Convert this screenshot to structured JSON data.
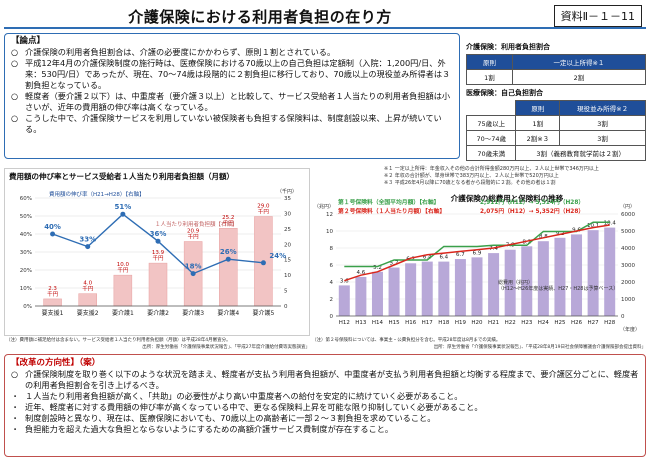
{
  "title": "介護保険における利用者負担の在り方",
  "doc_no": "資料Ⅱ－１－11",
  "ronten": {
    "heading": "【論点】",
    "items": [
      {
        "bullet": "○",
        "text": "介護保険の利用者負担割合は、介護の必要度にかかわらず、原則１割とされている。"
      },
      {
        "bullet": "○",
        "text": "平成12年4月の介護保険制度の施行時は、医療保険における70歳以上の自己負担は定額制（入院：1,200円/日、外来：530円/日）であったが、現在、70～74歳は段階的に２割負担に移行しており、70歳以上の現役並み所得者は３割負担となっている。"
      },
      {
        "bullet": "○",
        "text": "軽度者（要介護２以下）は、中重度者（要介護３以上）と比較して、サービス受給者１人当たりの利用者負担額は小さいが、近年の費用額の伸び率は高くなっている。"
      },
      {
        "bullet": "○",
        "text": "こうした中で、介護保険サービスを利用していない被保険者も負担する保険料は、制度創設以来、上昇が続いている。"
      }
    ]
  },
  "table1": {
    "title": "介護保険：利用者負担割合",
    "headers": [
      "原則",
      "一定以上所得※１"
    ],
    "row": [
      "1割",
      "2割"
    ]
  },
  "table2": {
    "title": "医療保険：自己負担割合",
    "headers": [
      "",
      "原則",
      "現役並み所得※２"
    ],
    "rows": [
      [
        "75歳以上",
        "1割",
        "3割"
      ],
      [
        "70～74歳",
        "2割※３",
        "3割"
      ],
      [
        "70歳未満",
        "3割（義務教育就学前は２割）",
        ""
      ]
    ]
  },
  "notes": [
    "※１ 一定以上所得：年金収入その他の合計所得金額280万円以上、２人以上世帯で346万円以上",
    "※２ 年収の合計額が、単身世帯で383万円以上、２人以上世帯で520万円以上",
    "※３ 平成26年4月以降に70歳となる者から段階的に２割。その他の者は１割"
  ],
  "chart_left": {
    "title": "費用額の伸び率とサービス受給者１人当たり利用者負担額（月額）",
    "legend_line": "費用額の伸び率（H21→H28）【右軸】",
    "legend_bar": "１人当たり利用者負担額【右軸】",
    "y_unit": "（千円）",
    "source": "出所：厚生労働省「介護保険事業状況報告」、「平成27年度介護給付費等実態調査」",
    "footnote": "（注）費用額に補足給付は含まない。サービス受給者１人当たり利用者負担額（月額）は平成28年4月審査分。"
  },
  "chart_data": [
    {
      "type": "bar",
      "title": "費用額の伸び率とサービス受給者１人当たり利用者負担額（月額）",
      "categories": [
        "要支援1",
        "要支援2",
        "要介護1",
        "要介護2",
        "要介護3",
        "要介護4",
        "要介護5"
      ],
      "series": [
        {
          "name": "１人当たり利用者負担額",
          "values": [
            2.3,
            4.0,
            10.0,
            13.9,
            20.9,
            25.2,
            29.0
          ],
          "labels": [
            "2.3千円",
            "4.0千円",
            "10.0千円",
            "13.9千円",
            "20.9千円",
            "25.2千円",
            "29.0千円"
          ]
        },
        {
          "name": "費用額の伸び率（H21→H28）",
          "values": [
            40,
            33,
            51,
            36,
            18,
            26,
            24
          ],
          "labels": [
            "40%",
            "33%",
            "51%",
            "36%",
            "18%",
            "26%",
            "24%"
          ]
        }
      ],
      "ylim_left": [
        0,
        60
      ],
      "ylim_right": [
        0,
        35
      ],
      "left_ticks": [
        "0%",
        "10%",
        "20%",
        "30%",
        "40%",
        "50%",
        "60%"
      ],
      "right_ticks": [
        "0",
        "5",
        "10",
        "15",
        "20",
        "25",
        "30",
        "35"
      ],
      "ylabel_right": "（千円）"
    },
    {
      "type": "line",
      "title": "介護保険の総費用と保険料の推移",
      "categories": [
        "H12",
        "H13",
        "H14",
        "H15",
        "H16",
        "H17",
        "H18",
        "H19",
        "H20",
        "H21",
        "H22",
        "H23",
        "H24",
        "H25",
        "H26",
        "H27",
        "H28"
      ],
      "bars": {
        "name": "総費用",
        "values": [
          3.6,
          4.6,
          5.2,
          5.7,
          6.2,
          6.4,
          6.4,
          6.7,
          6.9,
          7.4,
          7.8,
          8.2,
          8.8,
          9.2,
          9.6,
          10.1,
          10.4
        ]
      },
      "series": [
        {
          "name": "第１号保険料（全国平均月額）",
          "legend": "第１号保険料（全国平均月額）【右軸】",
          "range": "2,911円（H12）→ 5,514円（H28）",
          "values": [
            2911,
            2911,
            2911,
            3293,
            3293,
            3293,
            4090,
            4090,
            4090,
            4160,
            4160,
            4160,
            4972,
            4972,
            4972,
            5514,
            5514
          ]
        },
        {
          "name": "第２号保険料（１人当たり月額）",
          "legend": "第２号保険料（１人当たり月額）【右軸】",
          "range": "2,075円（H12）→ 5,352円（H28）",
          "values": [
            2075,
            2400,
            2600,
            3000,
            3400,
            3600,
            3700,
            3800,
            3900,
            4000,
            4200,
            4400,
            4600,
            4800,
            5000,
            5200,
            5352
          ]
        }
      ],
      "left_axis_label": "（兆円）",
      "right_axis_label": "（円）",
      "x_unit": "（年度）",
      "ylim_left": [
        0,
        12
      ],
      "ylim_right": [
        0,
        6000
      ],
      "left_ticks": [
        "0",
        "2",
        "4",
        "6",
        "8",
        "10",
        "12"
      ],
      "right_ticks": [
        "0",
        "1000",
        "2000",
        "3000",
        "4000",
        "5000",
        "6000"
      ],
      "annotation": "総費用（兆円）\n（H12～H26年度は実績、H27・H28は予算ベース）"
    }
  ],
  "chart_right_source": "出所：厚生労働省「介護保険事業状況報告」、「平成28年8月19日社会保障審議会介護保険部会提出資料」",
  "chart_left_note": "（注）第２号保険料については、事業主・公費負担分を含む。平成28年度は8月までの実績。",
  "kaikaku": {
    "heading": "【改革の方向性】（案）",
    "items": [
      {
        "bullet": "○",
        "text": "介護保険制度を取り巻く以下のような状況を踏まえ、軽度者が支払う利用者負担額が、中重度者が支払う利用者負担額と均衡する程度まで、要介護区分ごとに、軽度者の利用者負担割合を引き上げるべき。"
      },
      {
        "bullet": "・",
        "text": "１人当たり利用者負担額が高く、「共助」の必要性がより高い中重度者への給付を安定的に続けていく必要があること。"
      },
      {
        "bullet": "・",
        "text": "近年、軽度者に対する費用額の伸び率が高くなっている中で、更なる保険料上昇を可能な限り抑制していく必要があること。"
      },
      {
        "bullet": "・",
        "text": "制度創設時と異なり、現在は、医療保険においても、70歳以上の高齢者に一部２～３割負担を求めていること。"
      },
      {
        "bullet": "・",
        "text": "負担能力を超えた過大な負担とならないようにするための高額介護サービス費制度が存在すること。"
      }
    ]
  },
  "colors": {
    "line_blue": "#2e6db4",
    "bar_pink": "#f2c4c4",
    "green": "#3aa04a",
    "red": "#d9261c",
    "bar_lavender": "#b8a8d8"
  }
}
